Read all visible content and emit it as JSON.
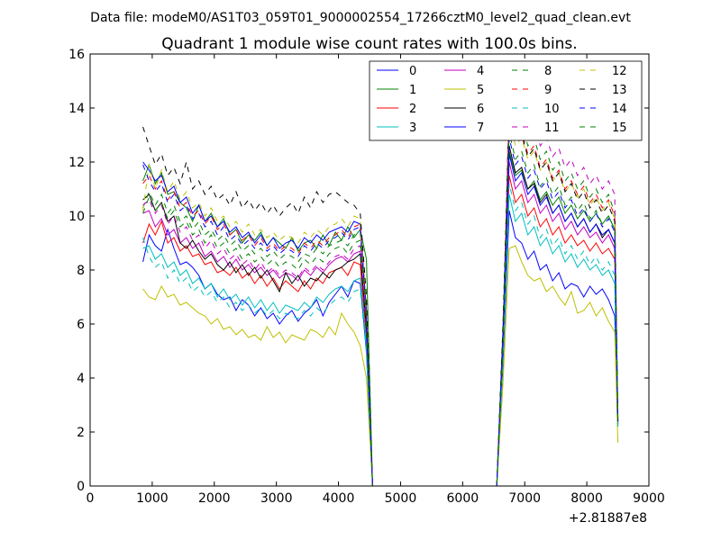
{
  "chart_data": {
    "type": "line",
    "suptitle": "Data file: modeM0/AS1T03_059T01_9000002554_17266cztM0_level2_quad_clean.evt",
    "title": "Quadrant 1 module wise count rates with 100.0s bins.",
    "xlabel": "",
    "ylabel": "",
    "x_offset_label": "+2.81887e8",
    "xlim": [
      0,
      9000
    ],
    "ylim": [
      0,
      16
    ],
    "x_ticks": [
      "0",
      "1000",
      "2000",
      "3000",
      "4000",
      "5000",
      "6000",
      "7000",
      "8000",
      "9000"
    ],
    "y_ticks": [
      "0",
      "2",
      "4",
      "6",
      "8",
      "10",
      "12",
      "14",
      "16"
    ],
    "legend_position": "upper-right",
    "x": [
      850,
      950,
      1050,
      1150,
      1250,
      1350,
      1450,
      1550,
      1650,
      1750,
      1850,
      1950,
      2050,
      2150,
      2250,
      2350,
      2450,
      2550,
      2650,
      2750,
      2850,
      2950,
      3050,
      3150,
      3250,
      3350,
      3450,
      3550,
      3650,
      3750,
      3850,
      3950,
      4050,
      4150,
      4250,
      4350,
      4450,
      4550,
      4650,
      6550,
      6650,
      6750,
      6850,
      6950,
      7050,
      7150,
      7250,
      7350,
      7450,
      7550,
      7650,
      7750,
      7850,
      7950,
      8050,
      8150,
      8250,
      8350,
      8450,
      8500
    ],
    "series": [
      {
        "name": "0",
        "color": "#0000ff",
        "dash": "solid",
        "values": [
          8.3,
          9.3,
          8.9,
          8.7,
          9.5,
          8.8,
          8.2,
          8.3,
          8.1,
          7.8,
          7.3,
          7.5,
          7.1,
          6.9,
          7.0,
          6.5,
          6.9,
          6.7,
          6.3,
          6.6,
          6.2,
          6.4,
          6.0,
          6.3,
          6.5,
          6.1,
          6.4,
          6.6,
          6.9,
          6.3,
          6.8,
          7.1,
          7.4,
          7.0,
          7.6,
          7.5,
          5.0,
          0.0,
          0.0,
          0.0,
          4.5,
          10.2,
          9.2,
          9.0,
          8.4,
          8.7,
          8.0,
          8.2,
          7.6,
          7.9,
          7.3,
          7.5,
          7.4,
          7.0,
          7.4,
          7.1,
          7.3,
          6.9,
          6.3,
          2.2
        ]
      },
      {
        "name": "1",
        "color": "#008000",
        "dash": "solid",
        "values": [
          11.3,
          11.9,
          11.2,
          11.6,
          10.8,
          10.9,
          10.5,
          10.3,
          9.8,
          10.4,
          9.8,
          10.1,
          9.6,
          9.9,
          9.3,
          9.5,
          9.0,
          9.3,
          9.1,
          9.4,
          8.9,
          9.2,
          9.0,
          8.8,
          9.2,
          8.7,
          9.0,
          9.1,
          8.8,
          9.3,
          8.9,
          9.4,
          9.1,
          9.6,
          9.2,
          9.5,
          8.4,
          0.0,
          0.0,
          0.0,
          5.5,
          12.4,
          11.5,
          11.7,
          11.0,
          11.3,
          10.6,
          10.9,
          10.4,
          10.7,
          10.1,
          10.4,
          9.9,
          10.2,
          9.8,
          10.1,
          9.7,
          10.0,
          9.5,
          2.4
        ]
      },
      {
        "name": "2",
        "color": "#ff0000",
        "dash": "solid",
        "values": [
          9.0,
          9.7,
          9.3,
          9.8,
          9.0,
          9.2,
          8.7,
          8.9,
          8.5,
          8.6,
          8.2,
          8.3,
          7.9,
          8.0,
          7.8,
          8.1,
          7.7,
          7.9,
          7.5,
          7.8,
          7.4,
          7.7,
          7.3,
          7.6,
          7.4,
          7.2,
          7.6,
          7.3,
          7.7,
          7.5,
          7.9,
          8.0,
          8.1,
          7.8,
          8.3,
          8.2,
          5.5,
          0.0,
          0.0,
          0.0,
          4.9,
          11.5,
          10.5,
          10.8,
          10.0,
          10.3,
          9.6,
          9.9,
          9.3,
          9.6,
          9.0,
          9.3,
          8.9,
          9.1,
          8.7,
          9.0,
          8.6,
          8.8,
          8.4,
          2.3
        ]
      },
      {
        "name": "3",
        "color": "#00bfbf",
        "dash": "solid",
        "values": [
          8.8,
          8.9,
          8.4,
          8.6,
          8.1,
          8.3,
          7.8,
          8.0,
          7.5,
          7.7,
          7.3,
          7.5,
          7.0,
          7.3,
          6.9,
          7.1,
          6.7,
          7.0,
          6.6,
          6.9,
          6.5,
          6.8,
          6.4,
          6.7,
          6.6,
          6.5,
          6.8,
          6.6,
          7.0,
          6.8,
          7.1,
          7.3,
          7.4,
          7.2,
          7.6,
          7.7,
          5.2,
          0.0,
          0.0,
          0.0,
          4.7,
          10.8,
          9.8,
          10.1,
          9.3,
          9.6,
          8.9,
          9.2,
          8.6,
          8.9,
          8.3,
          8.6,
          8.1,
          8.4,
          8.0,
          8.2,
          7.8,
          8.0,
          7.5,
          2.2
        ]
      },
      {
        "name": "4",
        "color": "#bf00bf",
        "dash": "solid",
        "values": [
          10.1,
          10.2,
          9.6,
          9.9,
          9.3,
          9.5,
          9.0,
          9.2,
          8.8,
          9.0,
          8.5,
          8.7,
          8.3,
          8.5,
          8.1,
          8.4,
          8.0,
          8.2,
          7.9,
          8.1,
          7.8,
          8.0,
          7.7,
          7.9,
          7.8,
          7.6,
          8.0,
          7.8,
          8.1,
          7.9,
          8.2,
          8.4,
          8.5,
          8.3,
          8.6,
          8.7,
          5.8,
          0.0,
          0.0,
          0.0,
          5.2,
          12.0,
          11.0,
          11.3,
          10.5,
          10.8,
          10.1,
          10.4,
          9.8,
          10.1,
          9.5,
          9.8,
          9.3,
          9.6,
          9.2,
          9.4,
          9.0,
          9.3,
          8.8,
          2.3
        ]
      },
      {
        "name": "5",
        "color": "#bfbf00",
        "dash": "solid",
        "values": [
          7.3,
          7.0,
          6.9,
          7.4,
          7.0,
          7.1,
          6.7,
          6.8,
          6.6,
          6.4,
          6.3,
          6.0,
          6.2,
          5.8,
          5.9,
          5.6,
          5.8,
          5.5,
          5.6,
          5.4,
          5.9,
          5.5,
          5.7,
          5.3,
          5.6,
          5.5,
          5.4,
          5.8,
          5.7,
          5.5,
          5.9,
          5.6,
          6.4,
          6.0,
          5.7,
          5.2,
          4.0,
          0.0,
          0.0,
          0.0,
          3.8,
          8.8,
          8.9,
          8.3,
          7.8,
          7.6,
          7.7,
          7.2,
          7.4,
          7.0,
          6.7,
          7.2,
          6.4,
          6.5,
          6.8,
          6.3,
          6.6,
          6.1,
          5.7,
          1.6
        ]
      },
      {
        "name": "6",
        "color": "#000000",
        "dash": "solid",
        "values": [
          10.6,
          10.8,
          10.2,
          10.5,
          9.8,
          10.0,
          9.0,
          8.8,
          9.1,
          8.7,
          8.4,
          8.6,
          8.2,
          8.0,
          8.3,
          7.9,
          8.2,
          7.8,
          8.1,
          7.7,
          8.0,
          7.6,
          7.2,
          7.9,
          7.5,
          7.8,
          7.4,
          7.7,
          7.6,
          7.9,
          7.7,
          8.0,
          8.1,
          8.3,
          8.4,
          8.6,
          5.8,
          0.0,
          0.0,
          0.0,
          5.2,
          12.6,
          11.6,
          11.8,
          11.0,
          11.2,
          10.5,
          10.8,
          10.1,
          10.4,
          9.8,
          10.1,
          9.6,
          9.9,
          9.4,
          9.7,
          9.2,
          9.5,
          9.0,
          2.3
        ]
      },
      {
        "name": "7",
        "color": "#0000ff",
        "dash": "solid",
        "values": [
          12.0,
          11.7,
          11.3,
          11.5,
          10.9,
          11.1,
          10.5,
          10.7,
          10.1,
          10.4,
          9.8,
          10.0,
          9.6,
          9.8,
          9.4,
          9.6,
          9.2,
          9.4,
          9.0,
          9.3,
          8.9,
          9.2,
          8.8,
          9.0,
          9.1,
          8.8,
          9.2,
          9.0,
          9.3,
          9.1,
          9.4,
          9.5,
          9.6,
          9.4,
          9.8,
          9.7,
          6.5,
          0.0,
          0.0,
          0.0,
          5.8,
          12.3,
          11.3,
          11.6,
          10.8,
          11.1,
          10.4,
          10.7,
          10.1,
          10.4,
          9.8,
          10.1,
          9.6,
          9.9,
          9.4,
          9.7,
          9.3,
          9.5,
          9.0,
          2.4
        ]
      },
      {
        "name": "8",
        "color": "#008000",
        "dash": "dashed",
        "values": [
          10.3,
          10.9,
          10.4,
          10.8,
          10.1,
          10.4,
          9.8,
          10.0,
          9.5,
          9.8,
          9.3,
          9.5,
          9.1,
          9.3,
          8.9,
          9.1,
          8.7,
          8.9,
          8.6,
          8.8,
          8.5,
          8.7,
          8.4,
          8.6,
          8.5,
          8.3,
          8.6,
          8.5,
          8.8,
          8.6,
          8.9,
          9.0,
          9.1,
          8.9,
          9.3,
          9.4,
          6.3,
          0.0,
          0.0,
          0.0,
          5.6,
          14.2,
          13.2,
          13.5,
          12.6,
          12.9,
          12.1,
          12.4,
          11.7,
          12.0,
          11.3,
          11.6,
          11.0,
          11.3,
          10.7,
          11.0,
          10.5,
          10.8,
          10.1,
          2.5
        ]
      },
      {
        "name": "9",
        "color": "#ff0000",
        "dash": "dashed",
        "values": [
          11.2,
          11.5,
          11.0,
          11.3,
          10.6,
          10.9,
          10.3,
          10.5,
          10.0,
          10.2,
          9.7,
          10.0,
          9.5,
          9.7,
          9.3,
          9.5,
          9.1,
          9.3,
          8.9,
          9.2,
          8.8,
          9.0,
          8.7,
          8.9,
          8.8,
          8.6,
          9.0,
          8.8,
          9.1,
          8.9,
          9.2,
          9.3,
          9.5,
          9.2,
          9.6,
          9.7,
          6.4,
          0.0,
          0.0,
          0.0,
          5.7,
          13.9,
          12.9,
          13.1,
          12.3,
          12.6,
          11.8,
          12.1,
          11.4,
          11.7,
          11.0,
          11.3,
          10.8,
          11.1,
          10.5,
          10.8,
          10.3,
          10.6,
          10.0,
          2.5
        ]
      },
      {
        "name": "10",
        "color": "#00bfbf",
        "dash": "dashed",
        "values": [
          9.2,
          8.5,
          8.1,
          8.3,
          7.7,
          8.0,
          7.5,
          7.7,
          7.2,
          7.4,
          7.0,
          7.2,
          6.8,
          7.0,
          6.6,
          6.8,
          6.5,
          6.7,
          6.4,
          6.6,
          6.3,
          6.5,
          6.2,
          6.4,
          6.3,
          6.2,
          6.5,
          6.3,
          6.6,
          6.4,
          6.7,
          6.9,
          7.0,
          6.8,
          7.2,
          7.3,
          4.9,
          0.0,
          0.0,
          0.0,
          4.6,
          11.2,
          10.2,
          10.5,
          9.7,
          10.0,
          9.2,
          9.5,
          8.9,
          9.2,
          8.6,
          8.9,
          8.4,
          8.7,
          8.2,
          8.5,
          8.0,
          8.3,
          7.8,
          2.2
        ]
      },
      {
        "name": "11",
        "color": "#bf00bf",
        "dash": "dashed",
        "values": [
          10.4,
          10.6,
          10.1,
          10.4,
          9.7,
          10.0,
          9.4,
          9.6,
          9.1,
          9.3,
          8.8,
          9.1,
          8.6,
          8.8,
          8.4,
          8.6,
          8.2,
          8.4,
          8.0,
          8.3,
          7.9,
          8.1,
          7.8,
          8.0,
          7.9,
          7.7,
          8.1,
          7.9,
          8.2,
          8.0,
          8.3,
          8.5,
          8.6,
          8.4,
          8.8,
          8.9,
          5.9,
          0.0,
          0.0,
          0.0,
          5.3,
          14.7,
          13.7,
          13.9,
          13.1,
          13.4,
          12.6,
          12.9,
          12.2,
          12.5,
          11.8,
          12.1,
          11.5,
          11.8,
          11.2,
          11.5,
          11.0,
          11.3,
          10.8,
          2.4
        ]
      },
      {
        "name": "12",
        "color": "#bfbf00",
        "dash": "dashed",
        "values": [
          10.2,
          11.9,
          11.0,
          11.7,
          10.9,
          11.3,
          10.6,
          10.9,
          10.3,
          10.5,
          10.0,
          10.3,
          9.8,
          10.0,
          9.6,
          9.8,
          9.4,
          9.7,
          9.3,
          9.5,
          9.2,
          9.4,
          9.1,
          9.3,
          9.2,
          9.0,
          9.4,
          9.2,
          9.5,
          9.3,
          9.6,
          9.7,
          9.9,
          9.6,
          10.0,
          9.9,
          6.7,
          0.0,
          0.0,
          0.0,
          5.9,
          13.6,
          12.6,
          12.9,
          12.1,
          12.4,
          11.7,
          12.0,
          11.3,
          11.6,
          10.9,
          11.2,
          10.7,
          11.0,
          10.4,
          10.7,
          10.2,
          10.5,
          9.9,
          2.5
        ]
      },
      {
        "name": "13",
        "color": "#000000",
        "dash": "dashed",
        "values": [
          13.3,
          12.6,
          11.9,
          12.3,
          11.5,
          11.8,
          11.2,
          12.0,
          11.0,
          11.3,
          10.8,
          11.1,
          10.6,
          10.8,
          10.4,
          10.9,
          10.3,
          10.6,
          10.2,
          10.5,
          10.1,
          10.4,
          10.0,
          10.3,
          10.5,
          10.1,
          10.7,
          10.3,
          10.9,
          10.5,
          10.8,
          10.9,
          10.7,
          10.5,
          10.4,
          10.1,
          7.0,
          0.0,
          0.0,
          0.0,
          6.0,
          13.8,
          12.8,
          13.0,
          12.2,
          12.5,
          11.7,
          12.0,
          11.3,
          11.6,
          10.9,
          11.2,
          10.6,
          10.9,
          10.3,
          10.6,
          10.1,
          10.4,
          9.8,
          2.5
        ]
      },
      {
        "name": "14",
        "color": "#0000ff",
        "dash": "dashed",
        "values": [
          11.9,
          11.3,
          10.9,
          11.2,
          10.5,
          10.8,
          10.2,
          10.4,
          9.9,
          10.1,
          9.6,
          9.8,
          9.3,
          9.6,
          9.1,
          9.3,
          8.9,
          9.1,
          8.8,
          9.0,
          8.7,
          8.9,
          8.6,
          8.8,
          8.7,
          8.5,
          8.9,
          8.7,
          9.0,
          8.8,
          9.1,
          9.2,
          9.4,
          9.1,
          9.5,
          9.6,
          6.3,
          0.0,
          0.0,
          0.0,
          5.6,
          12.9,
          11.9,
          12.2,
          11.4,
          11.7,
          11.0,
          11.3,
          10.6,
          10.9,
          10.3,
          10.6,
          10.0,
          10.3,
          9.8,
          10.1,
          9.6,
          9.9,
          9.4,
          2.4
        ]
      },
      {
        "name": "15",
        "color": "#008000",
        "dash": "dashed",
        "values": [
          10.1,
          10.7,
          10.2,
          10.5,
          9.9,
          10.2,
          9.6,
          9.8,
          9.3,
          9.5,
          9.0,
          9.3,
          8.8,
          9.0,
          8.6,
          8.8,
          8.4,
          8.6,
          8.3,
          8.5,
          8.2,
          8.4,
          8.1,
          8.3,
          8.2,
          8.0,
          8.4,
          8.2,
          8.5,
          8.3,
          8.6,
          8.8,
          8.9,
          8.6,
          9.0,
          9.1,
          6.1,
          0.0,
          0.0,
          0.0,
          5.4,
          13.1,
          12.1,
          12.4,
          11.6,
          11.9,
          11.1,
          11.4,
          10.8,
          11.1,
          10.4,
          10.7,
          10.2,
          10.5,
          9.9,
          10.2,
          9.7,
          10.0,
          9.5,
          2.4
        ]
      }
    ]
  }
}
